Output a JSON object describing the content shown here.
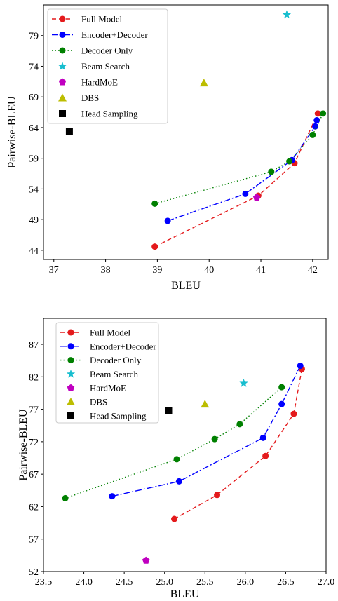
{
  "chart_data": [
    {
      "type": "scatter",
      "title": "",
      "xlabel": "BLEU",
      "ylabel": "Pairwise-BLEU",
      "xlim": [
        36.8,
        42.3
      ],
      "ylim": [
        42.5,
        84.0
      ],
      "xticks": [
        37,
        38,
        39,
        40,
        41,
        42
      ],
      "yticks": [
        44,
        49,
        54,
        59,
        64,
        69,
        74,
        79
      ],
      "grid": false,
      "legend_position": "top-left",
      "legend": [
        "Full Model",
        "Encoder+Decoder",
        "Decoder Only",
        "Beam Search",
        "HardMoE",
        "DBS",
        "Head Sampling"
      ],
      "series": [
        {
          "name": "Full Model",
          "style": "line",
          "dash": "dashed",
          "marker": "circle",
          "color": "#e41a1c",
          "points": [
            [
              38.95,
              44.6
            ],
            [
              40.95,
              52.9
            ],
            [
              41.65,
              58.2
            ],
            [
              42.1,
              66.3
            ]
          ]
        },
        {
          "name": "Encoder+Decoder",
          "style": "line",
          "dash": "dashdot",
          "marker": "circle",
          "color": "#0000ff",
          "points": [
            [
              39.2,
              48.8
            ],
            [
              40.7,
              53.2
            ],
            [
              41.6,
              58.7
            ],
            [
              42.05,
              64.2
            ],
            [
              42.08,
              65.2
            ]
          ]
        },
        {
          "name": "Decoder Only",
          "style": "line",
          "dash": "dotted",
          "marker": "circle",
          "color": "#008000",
          "points": [
            [
              38.95,
              51.6
            ],
            [
              41.2,
              56.8
            ],
            [
              41.55,
              58.5
            ],
            [
              42.0,
              62.8
            ],
            [
              42.2,
              66.3
            ]
          ]
        },
        {
          "name": "Beam Search",
          "style": "point",
          "marker": "star",
          "color": "#17becf",
          "points": [
            [
              41.5,
              82.4
            ]
          ]
        },
        {
          "name": "HardMoE",
          "style": "point",
          "marker": "pentagon",
          "color": "#c000c0",
          "points": [
            [
              40.92,
              52.6
            ]
          ]
        },
        {
          "name": "DBS",
          "style": "point",
          "marker": "triangle",
          "color": "#bcbd00",
          "points": [
            [
              39.9,
              71.3
            ]
          ]
        },
        {
          "name": "Head Sampling",
          "style": "point",
          "marker": "square",
          "color": "#000000",
          "points": [
            [
              37.3,
              63.4
            ]
          ]
        }
      ]
    },
    {
      "type": "scatter",
      "title": "",
      "xlabel": "BLEU",
      "ylabel": "Pairwise-BLEU",
      "xlim": [
        23.5,
        27.0
      ],
      "ylim": [
        52.0,
        91.0
      ],
      "xticks": [
        "23.5",
        "24.0",
        "24.5",
        "25.0",
        "25.5",
        "26.0",
        "26.5",
        "27.0"
      ],
      "yticks": [
        52,
        57,
        62,
        67,
        72,
        77,
        82,
        87
      ],
      "grid": false,
      "legend_position": "top-left",
      "legend": [
        "Full Model",
        "Encoder+Decoder",
        "Decoder Only",
        "Beam Search",
        "HardMoE",
        "DBS",
        "Head Sampling"
      ],
      "series": [
        {
          "name": "Full Model",
          "style": "line",
          "dash": "dashed",
          "marker": "circle",
          "color": "#e41a1c",
          "points": [
            [
              25.12,
              60.1
            ],
            [
              25.65,
              63.8
            ],
            [
              26.25,
              69.8
            ],
            [
              26.6,
              76.3
            ],
            [
              26.7,
              83.2
            ]
          ]
        },
        {
          "name": "Encoder+Decoder",
          "style": "line",
          "dash": "dashdot",
          "marker": "circle",
          "color": "#0000ff",
          "points": [
            [
              24.35,
              63.6
            ],
            [
              25.18,
              65.9
            ],
            [
              26.22,
              72.6
            ],
            [
              26.45,
              77.8
            ],
            [
              26.68,
              83.7
            ]
          ]
        },
        {
          "name": "Decoder Only",
          "style": "line",
          "dash": "dotted",
          "marker": "circle",
          "color": "#008000",
          "points": [
            [
              23.77,
              63.3
            ],
            [
              25.15,
              69.3
            ],
            [
              25.62,
              72.4
            ],
            [
              25.93,
              74.7
            ],
            [
              26.45,
              80.4
            ]
          ]
        },
        {
          "name": "Beam Search",
          "style": "point",
          "marker": "star",
          "color": "#17becf",
          "points": [
            [
              25.98,
              81.0
            ]
          ]
        },
        {
          "name": "HardMoE",
          "style": "point",
          "marker": "pentagon",
          "color": "#c000c0",
          "points": [
            [
              24.77,
              53.7
            ]
          ]
        },
        {
          "name": "DBS",
          "style": "point",
          "marker": "triangle",
          "color": "#bcbd00",
          "points": [
            [
              25.5,
              77.8
            ]
          ]
        },
        {
          "name": "Head Sampling",
          "style": "point",
          "marker": "square",
          "color": "#000000",
          "points": [
            [
              25.05,
              76.8
            ]
          ]
        }
      ]
    }
  ]
}
